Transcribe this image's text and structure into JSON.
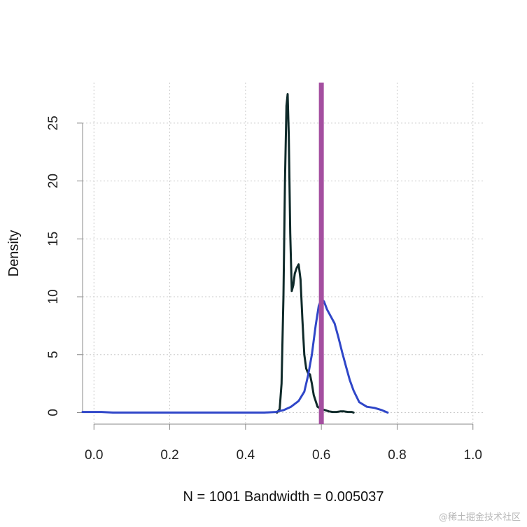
{
  "chart_data": {
    "type": "line",
    "title": "",
    "xlabel": "N = 1001   Bandwidth = 0.005037",
    "ylabel": "Density",
    "xlim": [
      -0.03,
      1.03
    ],
    "ylim": [
      -1.0,
      28.5
    ],
    "grid": true,
    "x_ticks": [
      "0.0",
      "0.2",
      "0.4",
      "0.6",
      "0.8",
      "1.0"
    ],
    "y_ticks": [
      "0",
      "5",
      "10",
      "15",
      "20",
      "25"
    ],
    "series": [
      {
        "color": "#0f2a2a",
        "x": [
          0.483,
          0.49,
          0.495,
          0.5,
          0.504,
          0.508,
          0.511,
          0.514,
          0.518,
          0.522,
          0.526,
          0.53,
          0.535,
          0.54,
          0.545,
          0.55,
          0.555,
          0.56,
          0.565,
          0.57,
          0.575,
          0.58,
          0.585,
          0.59,
          0.6,
          0.61,
          0.62,
          0.63,
          0.64,
          0.65,
          0.66,
          0.67,
          0.68,
          0.685
        ],
        "y": [
          0.0,
          0.3,
          2.5,
          10.0,
          20.0,
          26.5,
          27.5,
          24.0,
          15.5,
          10.5,
          11.0,
          12.0,
          12.5,
          12.8,
          11.5,
          8.0,
          5.0,
          3.8,
          3.4,
          3.3,
          2.5,
          1.5,
          1.0,
          0.5,
          0.3,
          0.2,
          0.1,
          0.05,
          0.05,
          0.1,
          0.1,
          0.05,
          0.05,
          0.0
        ]
      },
      {
        "color": "#2f46c8",
        "x": [
          -0.03,
          0.02,
          0.05,
          0.1,
          0.2,
          0.3,
          0.4,
          0.45,
          0.48,
          0.5,
          0.52,
          0.54,
          0.555,
          0.565,
          0.575,
          0.585,
          0.593,
          0.6,
          0.607,
          0.615,
          0.625,
          0.635,
          0.645,
          0.655,
          0.665,
          0.675,
          0.685,
          0.7,
          0.72,
          0.74,
          0.76,
          0.775
        ],
        "y": [
          0.05,
          0.05,
          0.0,
          0.0,
          0.0,
          0.0,
          0.0,
          0.0,
          0.05,
          0.2,
          0.5,
          1.0,
          1.8,
          3.2,
          5.0,
          7.5,
          9.2,
          9.8,
          9.6,
          8.9,
          8.3,
          7.7,
          6.5,
          5.2,
          4.0,
          2.8,
          1.9,
          0.9,
          0.5,
          0.4,
          0.2,
          0.0
        ]
      }
    ],
    "vlines": [
      {
        "x": 0.6,
        "color": "#a44fa0"
      }
    ]
  },
  "watermark": "@稀土掘金技术社区"
}
